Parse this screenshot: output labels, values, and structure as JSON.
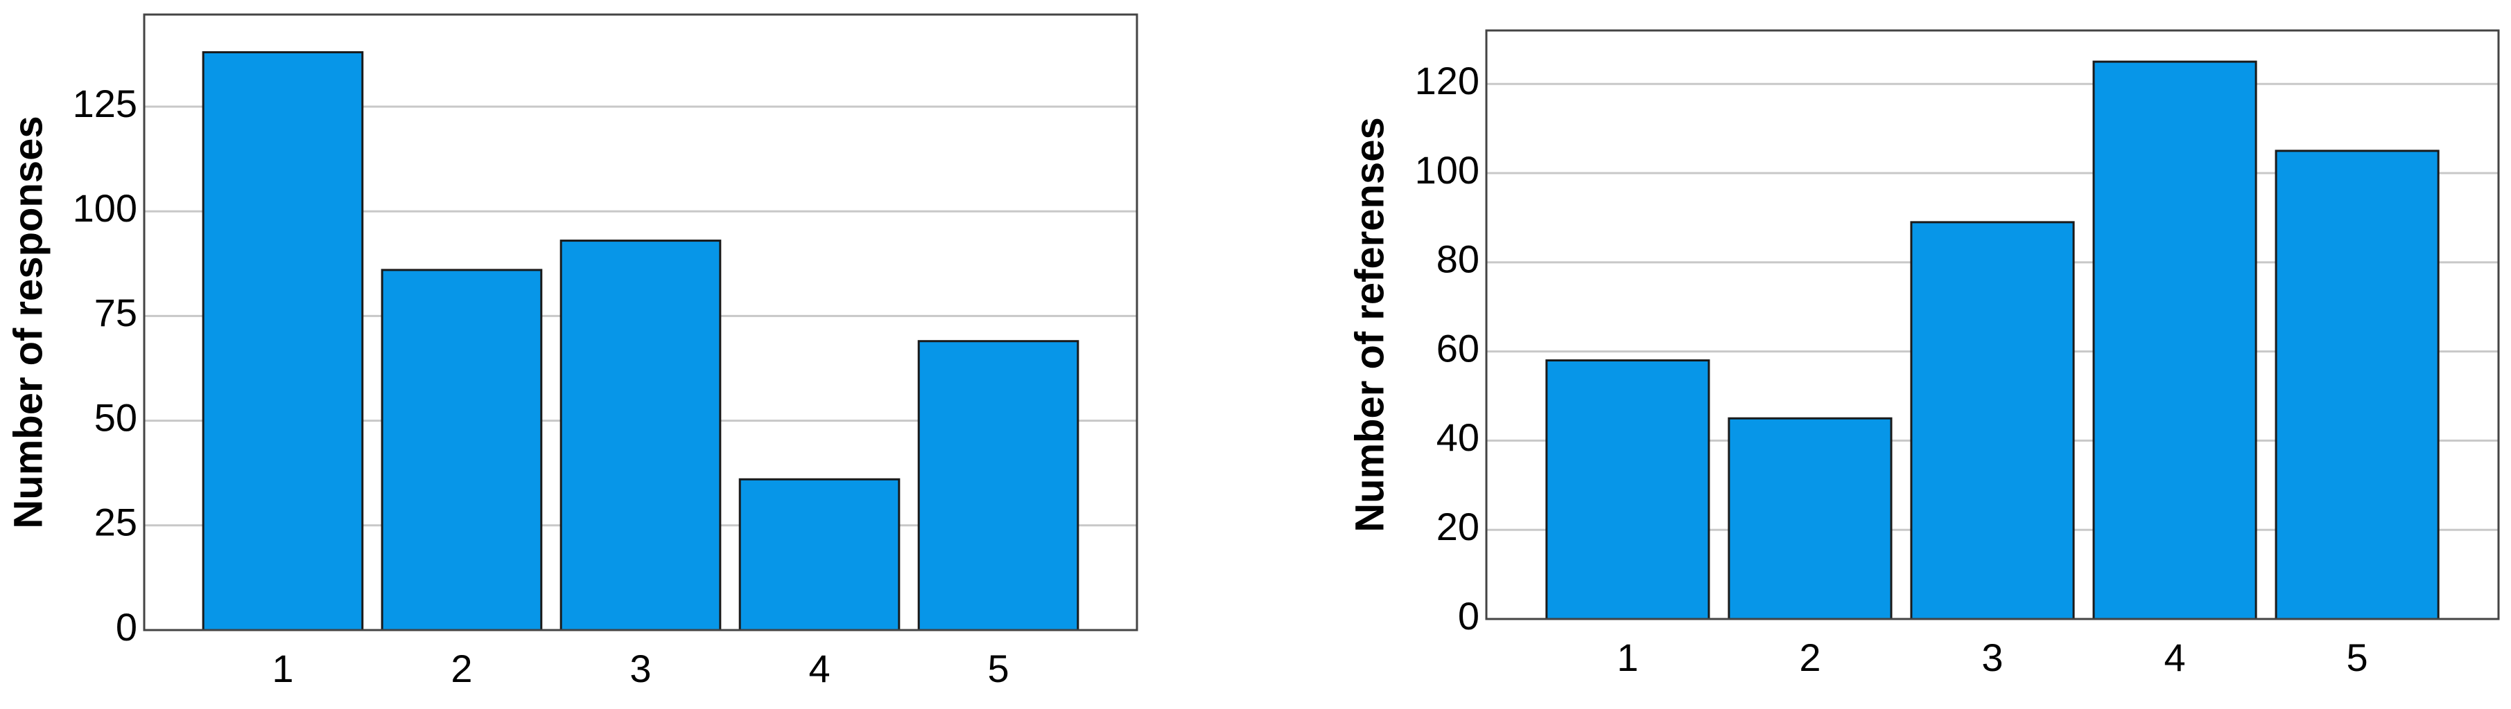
{
  "chart_data": [
    {
      "type": "bar",
      "y_label": "Number of responses",
      "categories": [
        "1",
        "2",
        "3",
        "4",
        "5"
      ],
      "values": [
        138,
        86,
        93,
        36,
        69
      ],
      "color": "#0796e8",
      "ylim": [
        0,
        147
      ],
      "yticks": [
        0,
        25,
        50,
        75,
        100,
        125
      ],
      "grid": true
    },
    {
      "type": "bar",
      "y_label": "Number of referenses",
      "categories": [
        "1",
        "2",
        "3",
        "4",
        "5"
      ],
      "values": [
        58,
        45,
        89,
        125,
        105
      ],
      "color": "#0796e8",
      "ylim": [
        0,
        132
      ],
      "yticks": [
        0,
        20,
        40,
        60,
        80,
        100,
        120
      ],
      "grid": true
    }
  ]
}
